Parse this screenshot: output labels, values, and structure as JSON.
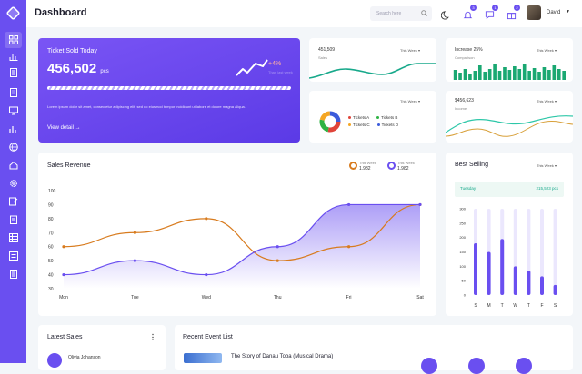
{
  "header": {
    "title": "Dashboard",
    "search_placeholder": "Search here",
    "notif_count": "3",
    "message_count": "1",
    "cart_count": "2",
    "user_name": "David"
  },
  "hero": {
    "title": "Ticket Sold Today",
    "value": "456,502",
    "unit": "pcs",
    "change": "+4%",
    "change_sub": "Than last week",
    "progress_pct": 100,
    "description": "Lorem ipsum dolor sit amet, consectetur adipiscing elit, sed do eiusmod tempor incididunt ut labore et dolore magna aliqua.",
    "view_detail": "View detail"
  },
  "sales_card": {
    "value": "451,509",
    "label": "Sales",
    "period": "This Week"
  },
  "increase_card": {
    "title": "Increase 25%",
    "label": "Comparison",
    "period": "This Week",
    "bars": [
      0.55,
      0.4,
      0.6,
      0.35,
      0.5,
      0.8,
      0.45,
      0.6,
      0.9,
      0.5,
      0.7,
      0.55,
      0.75,
      0.6,
      0.85,
      0.5,
      0.65,
      0.45,
      0.7,
      0.55,
      0.8,
      0.6,
      0.5
    ]
  },
  "tickets_card": {
    "period": "This Week",
    "legend": [
      "Tickets A",
      "Tickets B",
      "Tickets C",
      "Tickets D"
    ],
    "colors": [
      "#e0443a",
      "#2fb344",
      "#f5a623",
      "#3b5bdb"
    ]
  },
  "income_card": {
    "value": "$456,623",
    "label": "Income",
    "period": "This Week"
  },
  "revenue": {
    "title": "Sales Revenue",
    "legend": [
      {
        "label": "This Week",
        "value": "1.982",
        "color": "#d87b1e"
      },
      {
        "label": "This Week",
        "value": "1.982",
        "color": "#6a4ff0"
      }
    ]
  },
  "chart_data": {
    "type": "line",
    "title": "Sales Revenue",
    "categories": [
      "Mon",
      "Tue",
      "Wed",
      "Thu",
      "Fri",
      "Sat"
    ],
    "ylim": [
      30,
      100
    ],
    "yticks": [
      100,
      90,
      80,
      70,
      60,
      50,
      40,
      30
    ],
    "series": [
      {
        "name": "This Week",
        "color": "#d87b1e",
        "values": [
          60,
          70,
          80,
          50,
          60,
          90
        ]
      },
      {
        "name": "This Week",
        "color": "#6a4ff0",
        "values": [
          40,
          50,
          40,
          60,
          90,
          90
        ]
      }
    ]
  },
  "best_selling": {
    "title": "Best Selling",
    "period": "This Week",
    "row_label": "Tuesday",
    "row_value": "215,523 pcs",
    "yticks": [
      "300",
      "250",
      "200",
      "150",
      "100",
      "50",
      "0"
    ],
    "days": [
      "S",
      "M",
      "T",
      "W",
      "T",
      "F",
      "S"
    ],
    "values": [
      180,
      150,
      195,
      100,
      85,
      65,
      35
    ]
  },
  "latest_sales": {
    "title": "Latest Sales",
    "person": "Olivia Johanson"
  },
  "events": {
    "title": "Recent Event List",
    "item_title": "The Story of Danau Toba (Musical Drama)"
  }
}
